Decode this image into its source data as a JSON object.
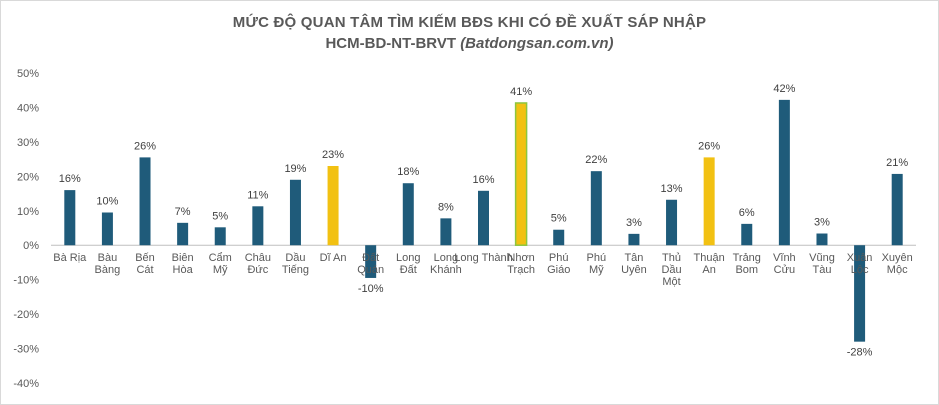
{
  "chart_data": {
    "type": "bar",
    "title": "MỨC ĐỘ QUAN TÂM TÌM KIẾM BĐS KHI CÓ ĐỀ XUẤT SÁP NHẬP",
    "subtitle_main": "HCM-BD-NT-BRVT",
    "subtitle_source": "(Batdongsan.com.vn)",
    "ylim": [
      -0.4,
      0.5
    ],
    "yticks": [
      "50%",
      "40%",
      "30%",
      "20%",
      "10%",
      "0%",
      "-10%",
      "-20%",
      "-30%",
      "-40%"
    ],
    "ytick_values": [
      0.5,
      0.4,
      0.3,
      0.2,
      0.1,
      0,
      -0.1,
      -0.2,
      -0.3,
      -0.4
    ],
    "grid": false,
    "colors": {
      "default": "#1f5b7a",
      "highlight": "#f2c112",
      "highlight_border": "#8dc63f"
    },
    "categories": [
      [
        "Bà Rịa"
      ],
      [
        "Bàu",
        "Bàng"
      ],
      [
        "Bến",
        "Cát"
      ],
      [
        "Biên",
        "Hòa"
      ],
      [
        "Cẩm",
        "Mỹ"
      ],
      [
        "Châu",
        "Đức"
      ],
      [
        "Dầu",
        "Tiếng"
      ],
      [
        "Dĩ An"
      ],
      [
        "Đất",
        "Quán"
      ],
      [
        "Long",
        "Đất"
      ],
      [
        "Long",
        "Khánh"
      ],
      [
        "Long Thành"
      ],
      [
        "Nhơn",
        "Trạch"
      ],
      [
        "Phú",
        "Giáo"
      ],
      [
        "Phú",
        "Mỹ"
      ],
      [
        "Tân",
        "Uyên"
      ],
      [
        "Thủ",
        "Dầu",
        "Một"
      ],
      [
        "Thuận",
        "An"
      ],
      [
        "Trảng",
        "Bom"
      ],
      [
        "Vĩnh",
        "Cửu"
      ],
      [
        "Vũng",
        "Tàu"
      ],
      [
        "Xuân",
        "Lộc"
      ],
      [
        "Xuyên",
        "Mộc"
      ]
    ],
    "values": [
      0.16,
      0.095,
      0.255,
      0.065,
      0.052,
      0.113,
      0.19,
      0.23,
      -0.095,
      0.18,
      0.078,
      0.158,
      0.413,
      0.045,
      0.215,
      0.033,
      0.132,
      0.255,
      0.062,
      0.422,
      0.034,
      -0.28,
      0.207
    ],
    "labels": [
      "16%",
      "10%",
      "26%",
      "7%",
      "5%",
      "11%",
      "19%",
      "23%",
      "-10%",
      "18%",
      "8%",
      "16%",
      "41%",
      "5%",
      "22%",
      "3%",
      "13%",
      "26%",
      "6%",
      "42%",
      "3%",
      "-28%",
      "21%"
    ],
    "bar_style": [
      "default",
      "default",
      "default",
      "default",
      "default",
      "default",
      "default",
      "highlight",
      "default",
      "default",
      "default",
      "default",
      "highlight-bordered",
      "default",
      "default",
      "default",
      "default",
      "highlight",
      "default",
      "default",
      "default",
      "default",
      "default"
    ]
  }
}
